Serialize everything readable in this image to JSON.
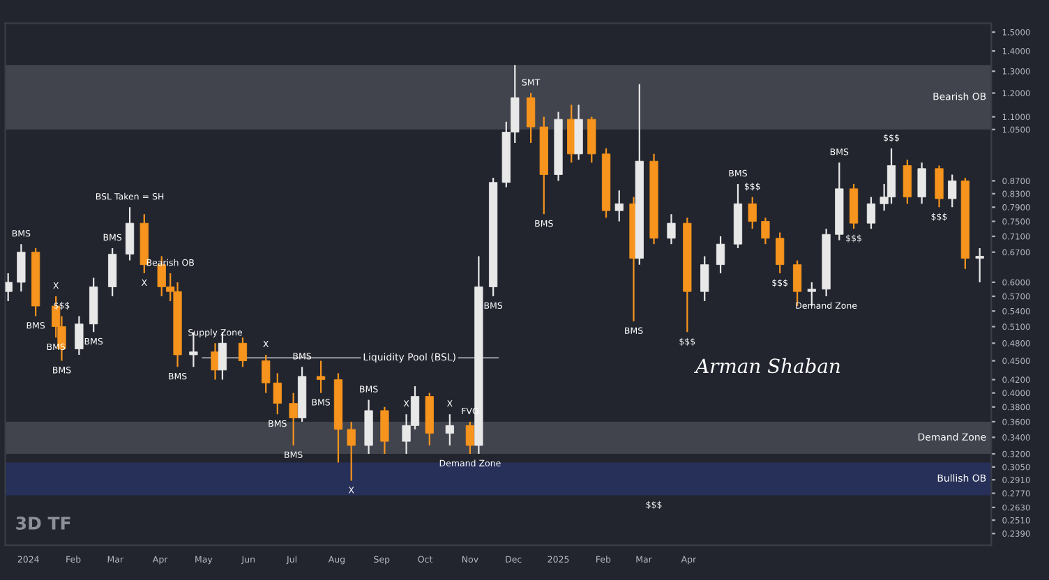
{
  "chart_data": {
    "type": "candlestick",
    "x": [
      "2023-12-18",
      "2023-12-27",
      "2024-01-06",
      "2024-01-20",
      "2024-01-24",
      "2024-02-05",
      "2024-02-15",
      "2024-02-28",
      "2024-03-11",
      "2024-03-21",
      "2024-04-02",
      "2024-04-08",
      "2024-04-13",
      "2024-04-24",
      "2024-05-09",
      "2024-05-14",
      "2024-05-28",
      "2024-06-13",
      "2024-06-21",
      "2024-07-02",
      "2024-07-08",
      "2024-07-21",
      "2024-08-02",
      "2024-08-11",
      "2024-08-23",
      "2024-09-03",
      "2024-09-18",
      "2024-09-24",
      "2024-10-04",
      "2024-10-18",
      "2024-11-01",
      "2024-11-07",
      "2024-11-17",
      "2024-11-26",
      "2024-12-02",
      "2024-12-13",
      "2024-12-22",
      "2025-01-01",
      "2025-01-10",
      "2025-01-15",
      "2025-01-24",
      "2025-02-03",
      "2025-02-12",
      "2025-02-22",
      "2025-02-26",
      "2025-03-08",
      "2025-03-20",
      "2025-03-31",
      "2025-04-12",
      "2025-04-23",
      "2025-05-05",
      "2025-05-15",
      "2025-05-24",
      "2025-06-03",
      "2025-06-15",
      "2025-06-25",
      "2025-07-05",
      "2025-07-14",
      "2025-07-24",
      "2025-08-05",
      "2025-08-14",
      "2025-08-19",
      "2025-08-30",
      "2025-09-09",
      "2025-09-21",
      "2025-09-30",
      "2025-10-09",
      "2025-10-19"
    ],
    "ohlc": [
      [
        0.58,
        0.62,
        0.56,
        0.6
      ],
      [
        0.6,
        0.69,
        0.58,
        0.67
      ],
      [
        0.67,
        0.68,
        0.53,
        0.55
      ],
      [
        0.55,
        0.57,
        0.49,
        0.51
      ],
      [
        0.51,
        0.53,
        0.45,
        0.47
      ],
      [
        0.47,
        0.53,
        0.46,
        0.515
      ],
      [
        0.515,
        0.61,
        0.5,
        0.59
      ],
      [
        0.59,
        0.68,
        0.57,
        0.665
      ],
      [
        0.665,
        0.79,
        0.65,
        0.745
      ],
      [
        0.745,
        0.77,
        0.62,
        0.64
      ],
      [
        0.64,
        0.66,
        0.57,
        0.59
      ],
      [
        0.59,
        0.62,
        0.56,
        0.58
      ],
      [
        0.58,
        0.6,
        0.44,
        0.46
      ],
      [
        0.46,
        0.5,
        0.44,
        0.465
      ],
      [
        0.465,
        0.48,
        0.42,
        0.435
      ],
      [
        0.435,
        0.5,
        0.42,
        0.48
      ],
      [
        0.48,
        0.49,
        0.44,
        0.45
      ],
      [
        0.45,
        0.46,
        0.4,
        0.415
      ],
      [
        0.415,
        0.43,
        0.37,
        0.385
      ],
      [
        0.385,
        0.4,
        0.33,
        0.365
      ],
      [
        0.365,
        0.44,
        0.36,
        0.425
      ],
      [
        0.425,
        0.45,
        0.4,
        0.42
      ],
      [
        0.42,
        0.43,
        0.31,
        0.35
      ],
      [
        0.35,
        0.36,
        0.29,
        0.33
      ],
      [
        0.33,
        0.39,
        0.32,
        0.375
      ],
      [
        0.375,
        0.38,
        0.32,
        0.335
      ],
      [
        0.335,
        0.37,
        0.32,
        0.355
      ],
      [
        0.355,
        0.41,
        0.35,
        0.395
      ],
      [
        0.395,
        0.4,
        0.33,
        0.345
      ],
      [
        0.345,
        0.37,
        0.33,
        0.355
      ],
      [
        0.355,
        0.36,
        0.32,
        0.33
      ],
      [
        0.33,
        0.66,
        0.32,
        0.59
      ],
      [
        0.59,
        0.88,
        0.57,
        0.865
      ],
      [
        0.865,
        1.08,
        0.85,
        1.04
      ],
      [
        1.04,
        1.33,
        1.0,
        1.18
      ],
      [
        1.18,
        1.2,
        1.0,
        1.06
      ],
      [
        1.06,
        1.1,
        0.77,
        0.89
      ],
      [
        0.89,
        1.12,
        0.87,
        1.09
      ],
      [
        1.09,
        1.15,
        0.93,
        0.96
      ],
      [
        0.96,
        1.15,
        0.94,
        1.09
      ],
      [
        1.09,
        1.1,
        0.93,
        0.96
      ],
      [
        0.96,
        0.98,
        0.76,
        0.78
      ],
      [
        0.78,
        0.84,
        0.75,
        0.8
      ],
      [
        0.8,
        0.82,
        0.52,
        0.655
      ],
      [
        0.655,
        1.24,
        0.64,
        0.935
      ],
      [
        0.935,
        0.96,
        0.69,
        0.705
      ],
      [
        0.705,
        0.77,
        0.69,
        0.745
      ],
      [
        0.745,
        0.76,
        0.5,
        0.58
      ],
      [
        0.58,
        0.66,
        0.56,
        0.64
      ],
      [
        0.64,
        0.71,
        0.62,
        0.69
      ],
      [
        0.69,
        0.86,
        0.68,
        0.8
      ],
      [
        0.8,
        0.82,
        0.73,
        0.75
      ],
      [
        0.75,
        0.76,
        0.69,
        0.705
      ],
      [
        0.705,
        0.72,
        0.62,
        0.64
      ],
      [
        0.64,
        0.65,
        0.55,
        0.58
      ],
      [
        0.58,
        0.6,
        0.55,
        0.585
      ],
      [
        0.585,
        0.73,
        0.57,
        0.715
      ],
      [
        0.715,
        0.93,
        0.7,
        0.845
      ],
      [
        0.845,
        0.86,
        0.73,
        0.745
      ],
      [
        0.745,
        0.82,
        0.73,
        0.8
      ],
      [
        0.8,
        0.86,
        0.78,
        0.82
      ],
      [
        0.82,
        0.98,
        0.8,
        0.92
      ],
      [
        0.92,
        0.94,
        0.8,
        0.82
      ],
      [
        0.82,
        0.93,
        0.8,
        0.91
      ],
      [
        0.91,
        0.92,
        0.79,
        0.815
      ],
      [
        0.815,
        0.89,
        0.79,
        0.87
      ],
      [
        0.87,
        0.88,
        0.63,
        0.655
      ],
      [
        0.655,
        0.68,
        0.6,
        0.66
      ]
    ],
    "colors": [
      "#e8e8e8",
      "#e8e8e8",
      "#f7941d",
      "#f7941d",
      "#f7941d",
      "#e8e8e8",
      "#e8e8e8",
      "#e8e8e8",
      "#e8e8e8",
      "#f7941d",
      "#f7941d",
      "#f7941d",
      "#f7941d",
      "#e8e8e8",
      "#f7941d",
      "#e8e8e8",
      "#f7941d",
      "#f7941d",
      "#f7941d",
      "#f7941d",
      "#e8e8e8",
      "#f7941d",
      "#f7941d",
      "#f7941d",
      "#e8e8e8",
      "#f7941d",
      "#e8e8e8",
      "#e8e8e8",
      "#f7941d",
      "#e8e8e8",
      "#f7941d",
      "#e8e8e8",
      "#e8e8e8",
      "#e8e8e8",
      "#e8e8e8",
      "#f7941d",
      "#f7941d",
      "#e8e8e8",
      "#f7941d",
      "#e8e8e8",
      "#f7941d",
      "#f7941d",
      "#e8e8e8",
      "#f7941d",
      "#e8e8e8",
      "#f7941d",
      "#e8e8e8",
      "#f7941d",
      "#e8e8e8",
      "#e8e8e8",
      "#e8e8e8",
      "#f7941d",
      "#f7941d",
      "#f7941d",
      "#f7941d",
      "#e8e8e8",
      "#e8e8e8",
      "#e8e8e8",
      "#f7941d",
      "#e8e8e8",
      "#e8e8e8",
      "#e8e8e8",
      "#f7941d",
      "#e8e8e8",
      "#f7941d",
      "#e8e8e8",
      "#f7941d",
      "#e8e8e8"
    ],
    "log": true,
    "xlim": [
      "2023-12-16",
      "2025-10-27"
    ],
    "xticks": [
      {
        "value": "2024-01-01",
        "label": "2024"
      },
      {
        "value": "2024-02-01",
        "label": "Feb"
      },
      {
        "value": "2024-03-01",
        "label": "Mar"
      },
      {
        "value": "2024-04-01",
        "label": "Apr"
      },
      {
        "value": "2024-05-01",
        "label": "May"
      },
      {
        "value": "2024-06-01",
        "label": "Jun"
      },
      {
        "value": "2024-07-01",
        "label": "Jul"
      },
      {
        "value": "2024-08-01",
        "label": "Aug"
      },
      {
        "value": "2024-09-01",
        "label": "Sep"
      },
      {
        "value": "2024-10-01",
        "label": "Oct"
      },
      {
        "value": "2024-11-01",
        "label": "Nov"
      },
      {
        "value": "2024-12-01",
        "label": "Dec"
      },
      {
        "value": "2025-01-01",
        "label": "2025"
      },
      {
        "value": "2025-02-01",
        "label": "Feb"
      },
      {
        "value": "2025-03-01",
        "label": "Mar"
      },
      {
        "value": "2025-04-01",
        "label": "Apr"
      }
    ],
    "ylim": [
      0.229,
      1.55
    ],
    "yticks": [
      {
        "value": 1.5,
        "label": "1.5000"
      },
      {
        "value": 1.4,
        "label": "1.4000"
      },
      {
        "value": 1.3,
        "label": "1.3000"
      },
      {
        "value": 1.2,
        "label": "1.2000"
      },
      {
        "value": 1.1,
        "label": "1.1000"
      },
      {
        "value": 1.05,
        "label": "1.0500"
      },
      {
        "value": 0.87,
        "label": "0.8700"
      },
      {
        "value": 0.83,
        "label": "0.8300"
      },
      {
        "value": 0.79,
        "label": "0.7900"
      },
      {
        "value": 0.75,
        "label": "0.7500"
      },
      {
        "value": 0.71,
        "label": "0.7100"
      },
      {
        "value": 0.67,
        "label": "0.6700"
      },
      {
        "value": 0.6,
        "label": "0.6000"
      },
      {
        "value": 0.57,
        "label": "0.5700"
      },
      {
        "value": 0.54,
        "label": "0.5400"
      },
      {
        "value": 0.51,
        "label": "0.5100"
      },
      {
        "value": 0.48,
        "label": "0.4800"
      },
      {
        "value": 0.45,
        "label": "0.4500"
      },
      {
        "value": 0.42,
        "label": "0.4200"
      },
      {
        "value": 0.4,
        "label": "0.4000"
      },
      {
        "value": 0.38,
        "label": "0.3800"
      },
      {
        "value": 0.36,
        "label": "0.3600"
      },
      {
        "value": 0.34,
        "label": "0.3400"
      },
      {
        "value": 0.32,
        "label": "0.3200"
      },
      {
        "value": 0.305,
        "label": "0.3050"
      },
      {
        "value": 0.291,
        "label": "0.2910"
      },
      {
        "value": 0.277,
        "label": "0.2770"
      },
      {
        "value": 0.263,
        "label": "0.2630"
      },
      {
        "value": 0.251,
        "label": "0.2510"
      },
      {
        "value": 0.239,
        "label": "0.2390"
      }
    ],
    "grid": false,
    "bands": [
      {
        "axis": "y",
        "from": 1.05,
        "to": 1.33,
        "label": "Bearish OB",
        "color": "#5b5e68"
      },
      {
        "axis": "y",
        "from": 0.32,
        "to": 0.36,
        "label": "Demand Zone",
        "color": "#5b5e68"
      },
      {
        "axis": "y",
        "from": 0.275,
        "to": 0.31,
        "label": "Bullish OB",
        "color": "#2c3a7c"
      }
    ],
    "ref_lines": [
      {
        "axis": "y",
        "value": 0.455,
        "label": "Liquidity Pool (BSL)",
        "color": "#9a9ca3",
        "line_style": "solid"
      }
    ],
    "annotations": [
      {
        "text": "BSL Taken = SH",
        "x": "2024-03-11",
        "y": 0.79
      },
      {
        "text": "BMS",
        "x": "2023-12-27",
        "y": 0.69
      },
      {
        "text": "BMS",
        "x": "2024-01-06",
        "y": 0.53
      },
      {
        "text": "BMS",
        "x": "2024-01-20",
        "y": 0.49
      },
      {
        "text": "BMS",
        "x": "2024-01-24",
        "y": 0.45
      },
      {
        "text": "BMS",
        "x": "2024-02-28",
        "y": 0.68
      },
      {
        "text": "BMS",
        "x": "2024-02-15",
        "y": 0.5
      },
      {
        "text": "BMS",
        "x": "2024-04-13",
        "y": 0.44
      },
      {
        "text": "BMS",
        "x": "2024-06-21",
        "y": 0.37
      },
      {
        "text": "BMS",
        "x": "2024-07-08",
        "y": 0.44
      },
      {
        "text": "BMS",
        "x": "2024-07-02",
        "y": 0.33
      },
      {
        "text": "BMS",
        "x": "2024-07-21",
        "y": 0.4
      },
      {
        "text": "BMS",
        "x": "2024-08-23",
        "y": 0.39
      },
      {
        "text": "BMS",
        "x": "2024-11-17",
        "y": 0.57
      },
      {
        "text": "BMS",
        "x": "2024-12-22",
        "y": 0.77
      },
      {
        "text": "BMS",
        "x": "2025-02-22",
        "y": 0.52
      },
      {
        "text": "BMS",
        "x": "2025-05-05",
        "y": 0.86
      },
      {
        "text": "BMS",
        "x": "2025-07-14",
        "y": 0.93
      },
      {
        "text": "X",
        "x": "2024-01-20",
        "y": 0.57
      },
      {
        "text": "X",
        "x": "2024-03-21",
        "y": 0.62
      },
      {
        "text": "X",
        "x": "2024-06-13",
        "y": 0.46
      },
      {
        "text": "X",
        "x": "2024-08-11",
        "y": 0.29
      },
      {
        "text": "X",
        "x": "2024-09-18",
        "y": 0.37
      },
      {
        "text": "X",
        "x": "2024-10-18",
        "y": 0.37
      },
      {
        "text": "SMT",
        "x": "2024-12-13",
        "y": 1.2
      },
      {
        "text": "FVG",
        "x": "2024-11-01",
        "y": 0.36
      },
      {
        "text": "Supply Zone",
        "x": "2024-05-09",
        "y": 0.48
      },
      {
        "text": "Bearish OB",
        "x": "2024-04-08",
        "y": 0.62
      },
      {
        "text": "Demand Zone",
        "x": "2024-11-01",
        "y": 0.32
      },
      {
        "text": "Demand Zone",
        "x": "2025-07-05",
        "y": 0.57
      },
      {
        "text": "$$$",
        "x": "2024-01-24",
        "y": 0.53
      },
      {
        "text": "$$$",
        "x": "2025-03-31",
        "y": 0.5
      },
      {
        "text": "$$$",
        "x": "2025-03-08",
        "y": 0.275
      },
      {
        "text": "$$$",
        "x": "2025-06-03",
        "y": 0.62
      },
      {
        "text": "$$$",
        "x": "2025-05-15",
        "y": 0.82
      },
      {
        "text": "$$$",
        "x": "2025-07-24",
        "y": 0.73
      },
      {
        "text": "$$$",
        "x": "2025-08-19",
        "y": 0.98
      },
      {
        "text": "$$$",
        "x": "2025-09-21",
        "y": 0.79
      },
      "3D TF",
      "Arman Shaban"
    ]
  }
}
